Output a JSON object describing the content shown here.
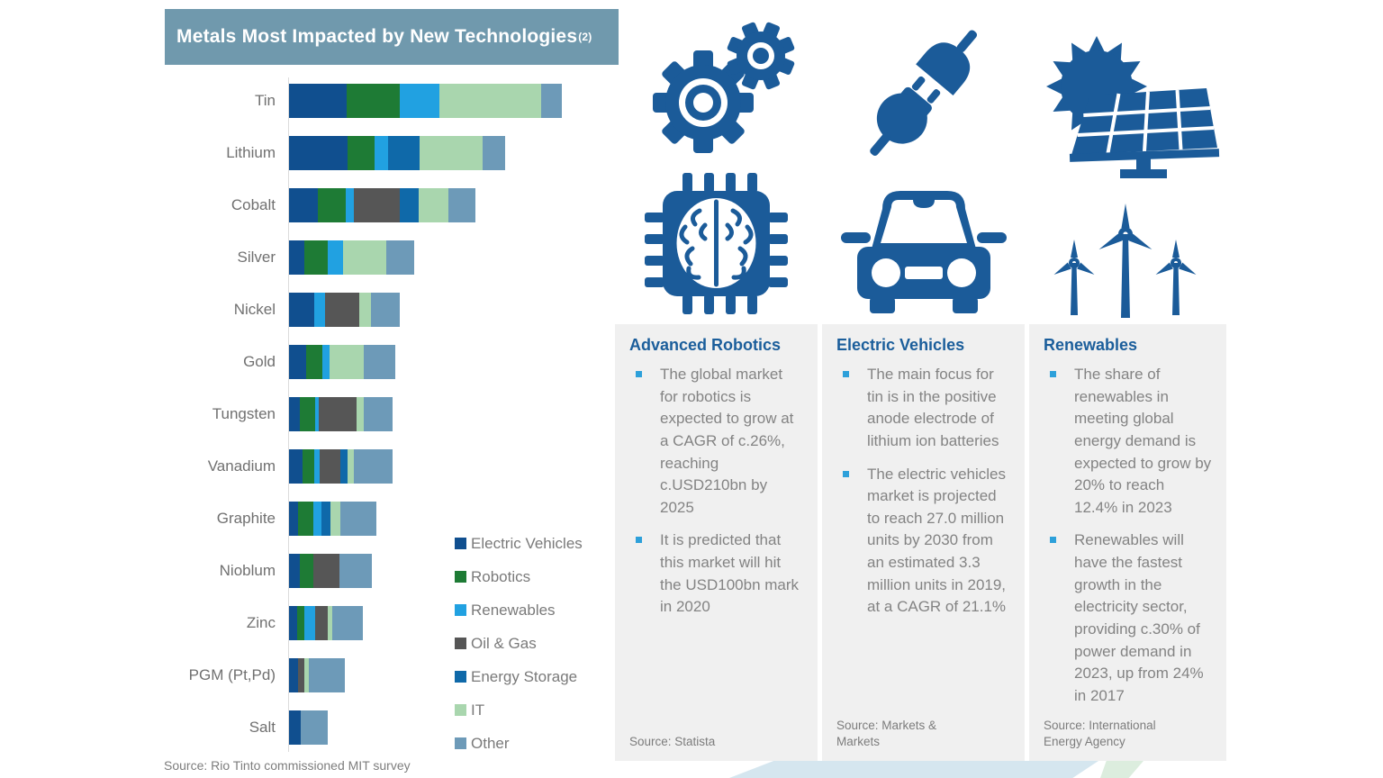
{
  "title": {
    "text": "Metals Most Impacted by New Technologies",
    "superscript": "(2)"
  },
  "chart_source": "Source: Rio Tinto commissioned MIT survey",
  "colors": {
    "title_bar_bg": "#7099ad",
    "panel_bg": "#f0f0f0",
    "icon_blue": "#1b5b99",
    "panel_title_blue": "#1b5e9b",
    "bullet_blue": "#2da0da",
    "body_text_gray": "#838383"
  },
  "series_colors": {
    "Electric Vehicles": "#104f8f",
    "Robotics": "#1e7b35",
    "Renewables": "#21a1e1",
    "Oil & Gas": "#565656",
    "Energy Storage": "#0f69a9",
    "IT": "#a9d6ae",
    "Other": "#6d9ab8"
  },
  "legend": {
    "items": [
      {
        "label": "Electric Vehicles",
        "color": "#104f8f"
      },
      {
        "label": "Robotics",
        "color": "#1e7b35"
      },
      {
        "label": "Renewables",
        "color": "#21a1e1"
      },
      {
        "label": "Oil & Gas",
        "color": "#565656"
      },
      {
        "label": "Energy Storage",
        "color": "#0f69a9"
      },
      {
        "label": "IT",
        "color": "#a9d6ae"
      },
      {
        "label": "Other",
        "color": "#6d9ab8"
      }
    ]
  },
  "chart_data": {
    "type": "bar",
    "orientation": "horizontal",
    "stacked": true,
    "title": "Metals Most Impacted by New Technologies(2)",
    "xlabel": "",
    "ylabel": "",
    "axis_labeled": false,
    "value_unit": "relative impact (pixel-proportional, axis unlabeled)",
    "legend_position": "bottom-right of chart",
    "categories": [
      "Tin",
      "Lithium",
      "Cobalt",
      "Silver",
      "Nickel",
      "Gold",
      "Tungsten",
      "Vanadium",
      "Graphite",
      "Nioblum",
      "Zinc",
      "PGM (Pt,Pd)",
      "Salt"
    ],
    "series_names": [
      "Electric Vehicles",
      "Robotics",
      "Renewables",
      "Oil & Gas",
      "Energy Storage",
      "IT",
      "Other"
    ],
    "rows": [
      {
        "metal": "Tin",
        "total": 303,
        "segments": [
          {
            "series": "Electric Vehicles",
            "value": 64
          },
          {
            "series": "Robotics",
            "value": 59
          },
          {
            "series": "Renewables",
            "value": 44
          },
          {
            "series": "IT",
            "value": 113
          },
          {
            "series": "Other",
            "value": 23
          }
        ]
      },
      {
        "metal": "Lithium",
        "total": 240,
        "segments": [
          {
            "series": "Electric Vehicles",
            "value": 65
          },
          {
            "series": "Robotics",
            "value": 30
          },
          {
            "series": "Renewables",
            "value": 15
          },
          {
            "series": "Energy Storage",
            "value": 35
          },
          {
            "series": "IT",
            "value": 70
          },
          {
            "series": "Other",
            "value": 25
          }
        ]
      },
      {
        "metal": "Cobalt",
        "total": 207,
        "segments": [
          {
            "series": "Electric Vehicles",
            "value": 32
          },
          {
            "series": "Robotics",
            "value": 31
          },
          {
            "series": "Renewables",
            "value": 9
          },
          {
            "series": "Oil & Gas",
            "value": 51
          },
          {
            "series": "Energy Storage",
            "value": 21
          },
          {
            "series": "IT",
            "value": 33
          },
          {
            "series": "Other",
            "value": 30
          }
        ]
      },
      {
        "metal": "Silver",
        "total": 139,
        "segments": [
          {
            "series": "Electric Vehicles",
            "value": 17
          },
          {
            "series": "Robotics",
            "value": 26
          },
          {
            "series": "Renewables",
            "value": 17
          },
          {
            "series": "IT",
            "value": 48
          },
          {
            "series": "Other",
            "value": 31
          }
        ]
      },
      {
        "metal": "Nickel",
        "total": 123,
        "segments": [
          {
            "series": "Electric Vehicles",
            "value": 28
          },
          {
            "series": "Renewables",
            "value": 12
          },
          {
            "series": "Oil & Gas",
            "value": 38
          },
          {
            "series": "IT",
            "value": 13
          },
          {
            "series": "Other",
            "value": 32
          }
        ]
      },
      {
        "metal": "Gold",
        "total": 118,
        "segments": [
          {
            "series": "Electric Vehicles",
            "value": 19
          },
          {
            "series": "Robotics",
            "value": 18
          },
          {
            "series": "Renewables",
            "value": 8
          },
          {
            "series": "IT",
            "value": 38
          },
          {
            "series": "Other",
            "value": 35
          }
        ]
      },
      {
        "metal": "Tungsten",
        "total": 115,
        "segments": [
          {
            "series": "Electric Vehicles",
            "value": 12
          },
          {
            "series": "Robotics",
            "value": 17
          },
          {
            "series": "Renewables",
            "value": 4
          },
          {
            "series": "Oil & Gas",
            "value": 42
          },
          {
            "series": "IT",
            "value": 8
          },
          {
            "series": "Other",
            "value": 32
          }
        ]
      },
      {
        "metal": "Vanadium",
        "total": 115,
        "segments": [
          {
            "series": "Electric Vehicles",
            "value": 15
          },
          {
            "series": "Robotics",
            "value": 13
          },
          {
            "series": "Renewables",
            "value": 6
          },
          {
            "series": "Oil & Gas",
            "value": 23
          },
          {
            "series": "Energy Storage",
            "value": 8
          },
          {
            "series": "IT",
            "value": 7
          },
          {
            "series": "Other",
            "value": 43
          }
        ]
      },
      {
        "metal": "Graphite",
        "total": 97,
        "segments": [
          {
            "series": "Electric Vehicles",
            "value": 10
          },
          {
            "series": "Robotics",
            "value": 17
          },
          {
            "series": "Renewables",
            "value": 9
          },
          {
            "series": "Energy Storage",
            "value": 10
          },
          {
            "series": "IT",
            "value": 11
          },
          {
            "series": "Other",
            "value": 40
          }
        ]
      },
      {
        "metal": "Nioblum",
        "total": 92,
        "segments": [
          {
            "series": "Electric Vehicles",
            "value": 12
          },
          {
            "series": "Robotics",
            "value": 15
          },
          {
            "series": "Oil & Gas",
            "value": 29
          },
          {
            "series": "Other",
            "value": 36
          }
        ]
      },
      {
        "metal": "Zinc",
        "total": 82,
        "segments": [
          {
            "series": "Electric Vehicles",
            "value": 9
          },
          {
            "series": "Robotics",
            "value": 8
          },
          {
            "series": "Renewables",
            "value": 12
          },
          {
            "series": "Oil & Gas",
            "value": 14
          },
          {
            "series": "IT",
            "value": 5
          },
          {
            "series": "Other",
            "value": 34
          }
        ]
      },
      {
        "metal": "PGM (Pt,Pd)",
        "total": 62,
        "segments": [
          {
            "series": "Electric Vehicles",
            "value": 10
          },
          {
            "series": "Oil & Gas",
            "value": 7
          },
          {
            "series": "IT",
            "value": 5
          },
          {
            "series": "Other",
            "value": 40
          }
        ]
      },
      {
        "metal": "Salt",
        "total": 43,
        "segments": [
          {
            "series": "Electric Vehicles",
            "value": 13
          },
          {
            "series": "Other",
            "value": 30
          }
        ]
      }
    ]
  },
  "icons": [
    "gears-icon",
    "plug-icon",
    "solar-panel-sun-icon",
    "ai-chip-icon",
    "car-icon",
    "wind-turbines-icon"
  ],
  "panels": [
    {
      "title": "Advanced Robotics",
      "bullets": [
        "The global market for robotics is expected to grow at a CAGR of c.26%, reaching c.USD210bn by 2025",
        "It is predicted that this market will hit the USD100bn mark in 2020"
      ],
      "source": "Source: Statista"
    },
    {
      "title": "Electric Vehicles",
      "bullets": [
        "The main focus for tin is in the positive anode electrode of lithium ion batteries",
        "The electric vehicles market is projected to reach 27.0 million units by 2030 from an estimated 3.3 million units in 2019, at a CAGR of 21.1%"
      ],
      "source": "Source: Markets & Markets"
    },
    {
      "title": "Renewables",
      "bullets": [
        "The share of renewables in meeting global energy demand is expected to grow by 20% to reach 12.4% in 2023",
        "Renewables will have the fastest growth in the electricity sector, providing c.30% of power demand in 2023, up from 24% in 2017"
      ],
      "source": "Source: International Energy Agency"
    }
  ]
}
